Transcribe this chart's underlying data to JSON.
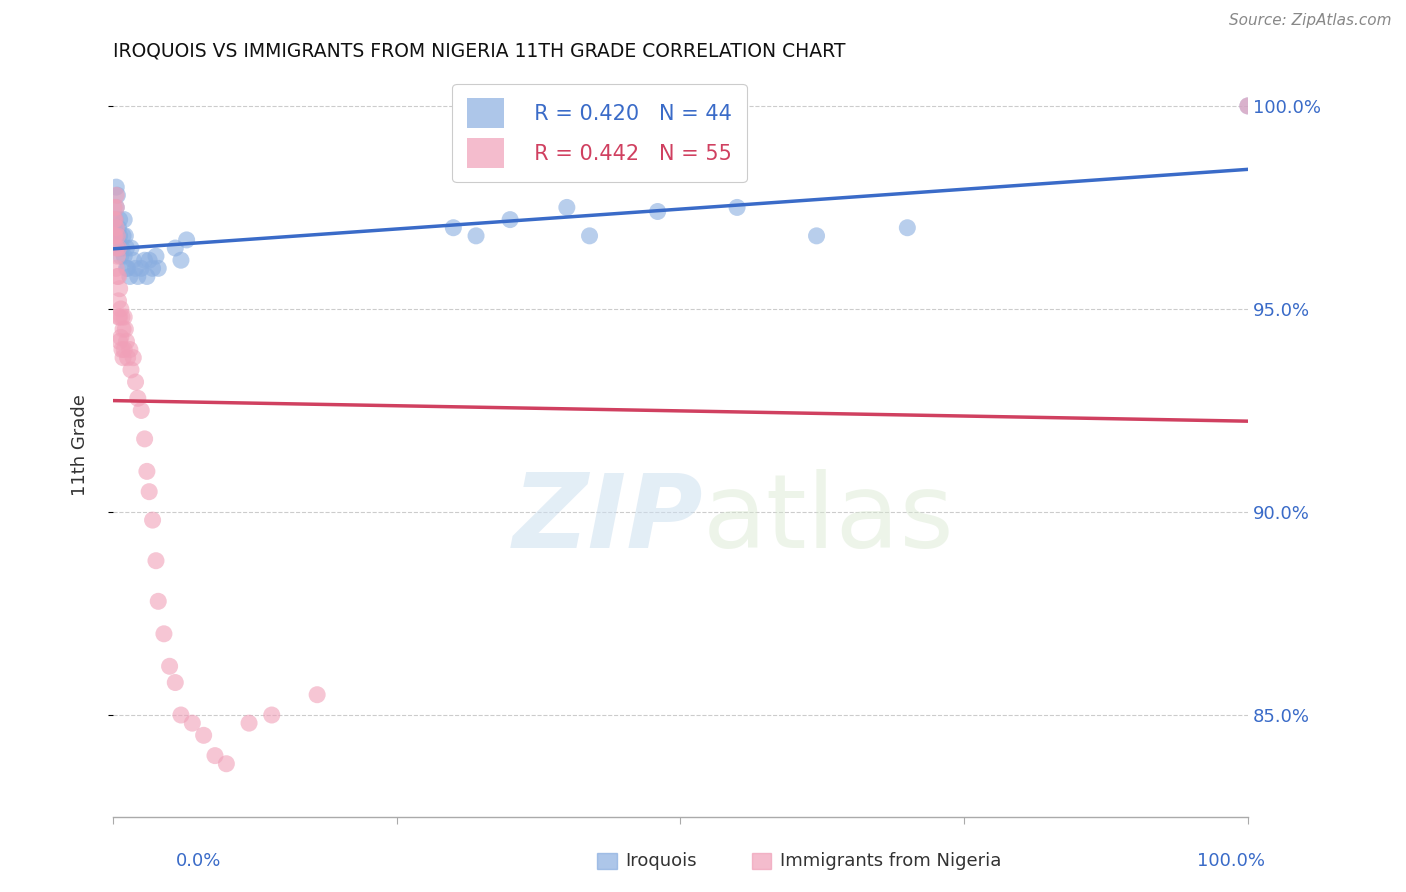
{
  "title": "IROQUOIS VS IMMIGRANTS FROM NIGERIA 11TH GRADE CORRELATION CHART",
  "source": "Source: ZipAtlas.com",
  "ylabel": "11th Grade",
  "watermark_zip": "ZIP",
  "watermark_atlas": "atlas",
  "legend_blue_r": "R = 0.420",
  "legend_blue_n": "N = 44",
  "legend_pink_r": "R = 0.442",
  "legend_pink_n": "N = 55",
  "blue_color": "#8aaee0",
  "pink_color": "#f0a0b8",
  "blue_line_color": "#3a6bc8",
  "pink_line_color": "#d04060",
  "background_color": "#ffffff",
  "grid_color": "#cccccc",
  "blue_scatter": [
    [
      0.001,
      0.97
    ],
    [
      0.002,
      0.972
    ],
    [
      0.003,
      0.975
    ],
    [
      0.003,
      0.98
    ],
    [
      0.004,
      0.968
    ],
    [
      0.004,
      0.978
    ],
    [
      0.005,
      0.97
    ],
    [
      0.005,
      0.965
    ],
    [
      0.006,
      0.972
    ],
    [
      0.006,
      0.968
    ],
    [
      0.007,
      0.963
    ],
    [
      0.008,
      0.965
    ],
    [
      0.009,
      0.968
    ],
    [
      0.01,
      0.963
    ],
    [
      0.01,
      0.972
    ],
    [
      0.011,
      0.968
    ],
    [
      0.012,
      0.96
    ],
    [
      0.012,
      0.965
    ],
    [
      0.013,
      0.96
    ],
    [
      0.015,
      0.958
    ],
    [
      0.016,
      0.965
    ],
    [
      0.018,
      0.962
    ],
    [
      0.02,
      0.96
    ],
    [
      0.022,
      0.958
    ],
    [
      0.025,
      0.96
    ],
    [
      0.028,
      0.962
    ],
    [
      0.03,
      0.958
    ],
    [
      0.032,
      0.962
    ],
    [
      0.035,
      0.96
    ],
    [
      0.038,
      0.963
    ],
    [
      0.04,
      0.96
    ],
    [
      0.055,
      0.965
    ],
    [
      0.06,
      0.962
    ],
    [
      0.065,
      0.967
    ],
    [
      0.3,
      0.97
    ],
    [
      0.32,
      0.968
    ],
    [
      0.35,
      0.972
    ],
    [
      0.4,
      0.975
    ],
    [
      0.42,
      0.968
    ],
    [
      0.48,
      0.974
    ],
    [
      0.55,
      0.975
    ],
    [
      0.62,
      0.968
    ],
    [
      0.7,
      0.97
    ],
    [
      1.0,
      1.0
    ]
  ],
  "pink_scatter": [
    [
      0.001,
      0.968
    ],
    [
      0.001,
      0.972
    ],
    [
      0.001,
      0.975
    ],
    [
      0.002,
      0.972
    ],
    [
      0.002,
      0.968
    ],
    [
      0.003,
      0.978
    ],
    [
      0.003,
      0.975
    ],
    [
      0.003,
      0.97
    ],
    [
      0.003,
      0.965
    ],
    [
      0.003,
      0.96
    ],
    [
      0.004,
      0.968
    ],
    [
      0.004,
      0.963
    ],
    [
      0.004,
      0.958
    ],
    [
      0.005,
      0.965
    ],
    [
      0.005,
      0.958
    ],
    [
      0.005,
      0.952
    ],
    [
      0.005,
      0.948
    ],
    [
      0.006,
      0.955
    ],
    [
      0.006,
      0.948
    ],
    [
      0.006,
      0.942
    ],
    [
      0.007,
      0.95
    ],
    [
      0.007,
      0.943
    ],
    [
      0.008,
      0.948
    ],
    [
      0.008,
      0.94
    ],
    [
      0.009,
      0.945
    ],
    [
      0.009,
      0.938
    ],
    [
      0.01,
      0.948
    ],
    [
      0.01,
      0.94
    ],
    [
      0.011,
      0.945
    ],
    [
      0.012,
      0.942
    ],
    [
      0.013,
      0.938
    ],
    [
      0.015,
      0.94
    ],
    [
      0.016,
      0.935
    ],
    [
      0.018,
      0.938
    ],
    [
      0.02,
      0.932
    ],
    [
      0.022,
      0.928
    ],
    [
      0.025,
      0.925
    ],
    [
      0.028,
      0.918
    ],
    [
      0.03,
      0.91
    ],
    [
      0.032,
      0.905
    ],
    [
      0.035,
      0.898
    ],
    [
      0.038,
      0.888
    ],
    [
      0.04,
      0.878
    ],
    [
      0.045,
      0.87
    ],
    [
      0.05,
      0.862
    ],
    [
      0.055,
      0.858
    ],
    [
      0.06,
      0.85
    ],
    [
      0.07,
      0.848
    ],
    [
      0.08,
      0.845
    ],
    [
      0.09,
      0.84
    ],
    [
      0.1,
      0.838
    ],
    [
      0.12,
      0.848
    ],
    [
      0.14,
      0.85
    ],
    [
      0.18,
      0.855
    ],
    [
      1.0,
      1.0
    ]
  ],
  "xlim": [
    0.0,
    1.0
  ],
  "ylim": [
    0.825,
    1.008
  ],
  "yticks": [
    0.85,
    0.9,
    0.95,
    1.0
  ],
  "xticks": [
    0.0,
    0.25,
    0.5,
    0.75,
    1.0
  ]
}
